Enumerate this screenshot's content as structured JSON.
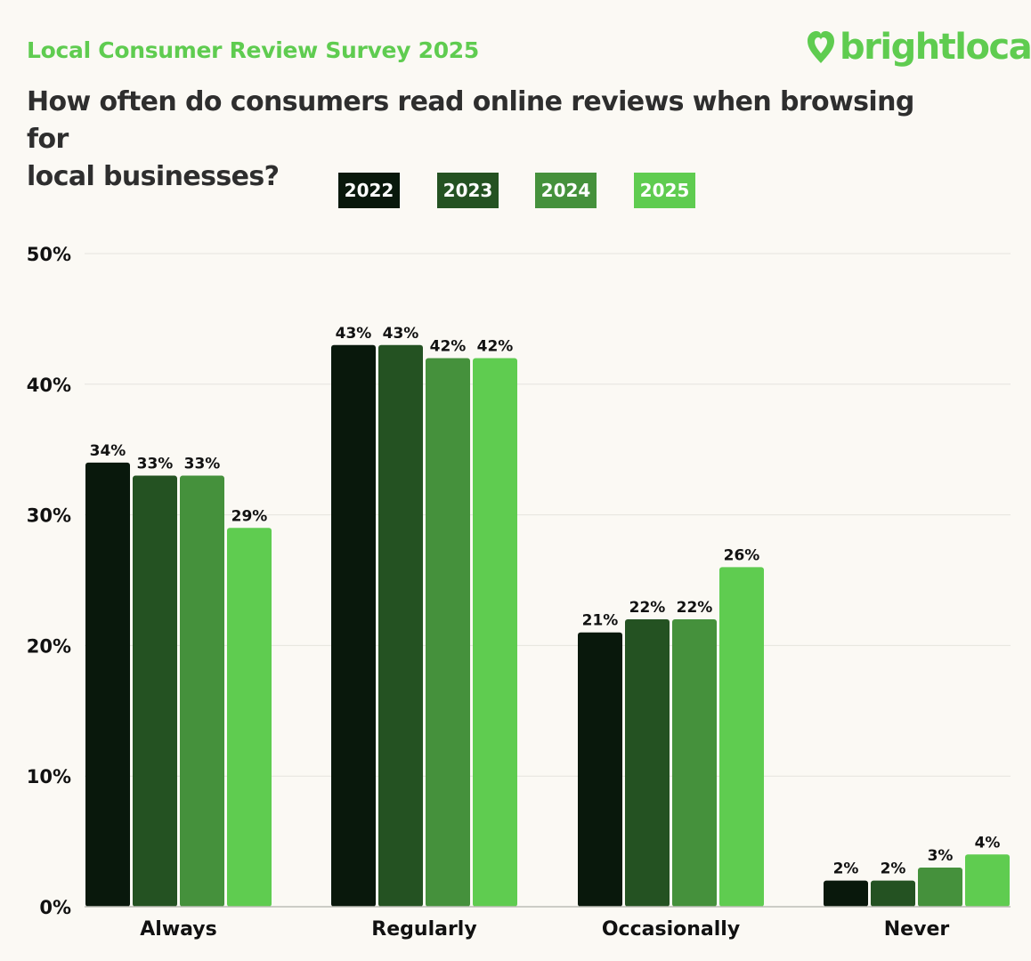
{
  "header": {
    "survey_title": "Local Consumer Review Survey 2025",
    "brand_name": "brightlocal",
    "question_line1": "How often do consumers read online reviews when browsing for",
    "question_line2": "local businesses?"
  },
  "colors": {
    "background": "#fbf9f4",
    "accent": "#5fcc50",
    "series": [
      "#09180c",
      "#245222",
      "#45913c",
      "#5fcc50"
    ]
  },
  "chart_data": {
    "type": "bar",
    "title": "How often do consumers read online reviews when browsing for local businesses?",
    "categories": [
      "Always",
      "Regularly",
      "Occasionally",
      "Never"
    ],
    "series": [
      {
        "name": "2022",
        "values": [
          34,
          43,
          21,
          2
        ]
      },
      {
        "name": "2023",
        "values": [
          33,
          43,
          22,
          2
        ]
      },
      {
        "name": "2024",
        "values": [
          33,
          42,
          22,
          3
        ]
      },
      {
        "name": "2025",
        "values": [
          29,
          42,
          26,
          4
        ]
      }
    ],
    "data_labels": [
      [
        "34%",
        "43%",
        "21%",
        "2%"
      ],
      [
        "33%",
        "43%",
        "22%",
        "2%"
      ],
      [
        "33%",
        "42%",
        "22%",
        "3%"
      ],
      [
        "29%",
        "42%",
        "26%",
        "4%"
      ]
    ],
    "y_ticks": [
      0,
      10,
      20,
      30,
      40,
      50
    ],
    "y_tick_labels": [
      "0%",
      "10%",
      "20%",
      "30%",
      "40%",
      "50%"
    ],
    "ylim": [
      0,
      50
    ],
    "grid": true,
    "legend_position": "top-center"
  }
}
